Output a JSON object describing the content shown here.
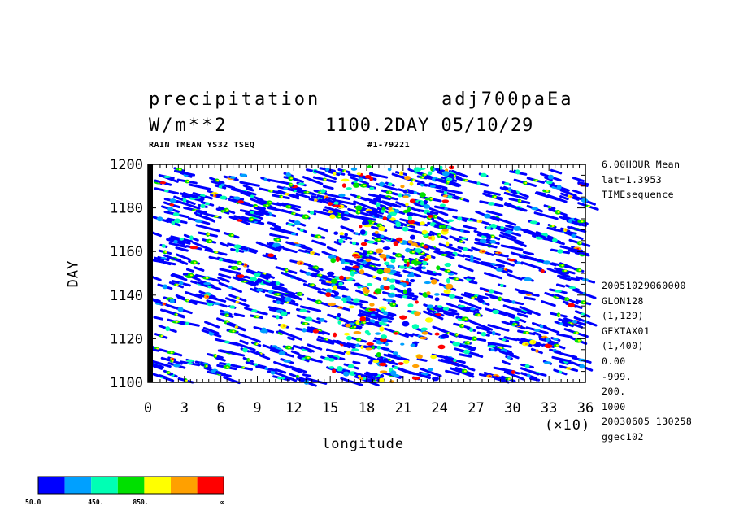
{
  "header": {
    "var_name": "precipitation",
    "run_name": "adj700paEa",
    "units": "W/m**2",
    "time_info": "1100.2DAY 05/10/29",
    "subtitle": "RAIN TMEAN YS32 TSEQ",
    "run_id": "#1-79221"
  },
  "side_info": {
    "top": [
      "6.00HOUR Mean",
      "lat=1.3953",
      "TIMEsequence"
    ],
    "bottom": [
      "20051029060000",
      "GLON128",
      "(1,129)",
      "GEXTAX01",
      "(1,400)",
      "0.00",
      "-999.",
      "200.",
      "1000",
      "20030605 130258",
      "ggec102"
    ]
  },
  "chart_data": {
    "type": "heatmap",
    "xlabel": "longitude",
    "ylabel": "DAY",
    "x_scale_note": "(×10)",
    "xlim": [
      0,
      36
    ],
    "ylim": [
      1100,
      1200
    ],
    "x_ticks": [
      "0",
      "3",
      "6",
      "9",
      "12",
      "15",
      "18",
      "21",
      "24",
      "27",
      "30",
      "33",
      "36"
    ],
    "y_ticks": [
      "1100",
      "1120",
      "1140",
      "1160",
      "1180",
      "1200"
    ],
    "color_levels": [
      {
        "label": "50.0",
        "color": "#0000ff"
      },
      {
        "label": "",
        "color": "#00a0ff"
      },
      {
        "label": "450.",
        "color": "#00ffb4"
      },
      {
        "label": "",
        "color": "#00e000"
      },
      {
        "label": "850.",
        "color": "#ffff00"
      },
      {
        "label": "",
        "color": "#ffa000"
      },
      {
        "label": "∞",
        "color": "#ff0000"
      }
    ]
  }
}
